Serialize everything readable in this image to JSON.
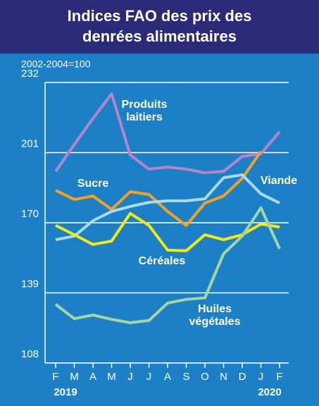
{
  "chart_data": {
    "type": "line",
    "title": "Indices FAO des prix des denrées alimentaires",
    "y_axis_label": "2002-2004=100",
    "categories": [
      "F",
      "M",
      "A",
      "M",
      "J",
      "J",
      "A",
      "S",
      "O",
      "N",
      "D",
      "J",
      "F"
    ],
    "years": [
      "2019",
      "2020"
    ],
    "ylim": [
      108,
      232
    ],
    "yticks": [
      108,
      139,
      170,
      201,
      232
    ],
    "grid": true,
    "series": [
      {
        "name": "Produits laitiers",
        "color": "#b784c9",
        "values": [
          192.7,
          204.6,
          216.1,
          227.0,
          199.9,
          193.7,
          194.6,
          193.7,
          192.1,
          192.7,
          199.3,
          200.5,
          210.2
        ]
      },
      {
        "name": "Sucre",
        "color": "#f5a01e",
        "values": [
          184.3,
          180.3,
          181.8,
          175.9,
          183.7,
          182.5,
          175.0,
          168.8,
          178.7,
          181.8,
          189.6,
          201.5,
          null
        ]
      },
      {
        "name": "Viande",
        "color": "#a9daf2",
        "values": [
          162.5,
          164.1,
          170.9,
          175.0,
          177.2,
          179.0,
          179.7,
          179.7,
          180.6,
          189.9,
          191.2,
          182.8,
          178.7
        ]
      },
      {
        "name": "Céréales",
        "color": "#f6ea0a",
        "values": [
          168.8,
          164.7,
          160.4,
          161.9,
          174.1,
          168.8,
          157.9,
          157.6,
          164.7,
          162.5,
          164.7,
          169.4,
          168.1
        ]
      },
      {
        "name": "Huiles végétales",
        "color": "#a6d6a0",
        "values": [
          133.9,
          127.6,
          129.2,
          127.3,
          125.8,
          126.8,
          134.5,
          136.1,
          136.8,
          156.3,
          164.1,
          176.6,
          158.5
        ]
      }
    ]
  }
}
